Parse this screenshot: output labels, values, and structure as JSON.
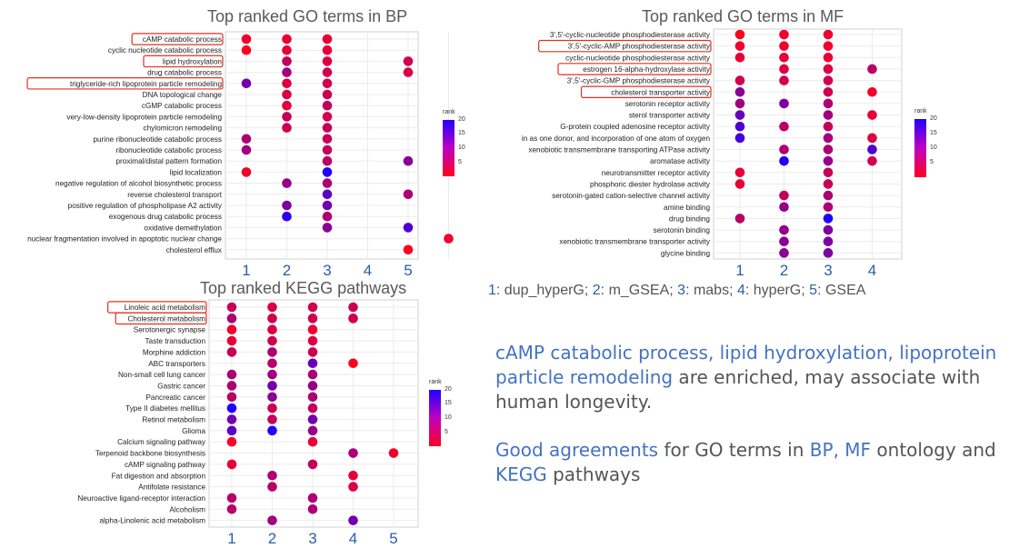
{
  "chart_data": [
    {
      "type": "scatter",
      "title": "Top ranked GO terms in BP",
      "x_ticks": [
        "1",
        "2",
        "3",
        "4",
        "5"
      ],
      "legend_title": "rank",
      "legend_ticks": [
        "20",
        "15",
        "10",
        "5"
      ],
      "categories": [
        "cAMP catabolic process",
        "cyclic nucleotide catabolic process",
        "lipid hydroxylation",
        "drug catabolic process",
        "triglyceride-rich lipoprotein particle remodeling",
        "DNA topological change",
        "cGMP catabolic process",
        "very-low-density lipoprotein particle remodeling",
        "chylomicron remodeling",
        "purine ribonucleotide catabolic process",
        "ribonucleotide catabolic process",
        "proximal/distal pattern formation",
        "lipid localization",
        "negative regulation of alcohol biosynthetic process",
        "reverse cholesterol transport",
        "positive regulation of phospholipase A2 activity",
        "exogenous drug catabolic process",
        "oxidative demethylation",
        "nuclear fragmentation involved in apoptotic nuclear change",
        "cholesterol efflux"
      ],
      "highlighted": [
        0,
        2,
        4
      ],
      "points": [
        [
          0,
          1,
          2
        ],
        [
          0,
          2,
          3
        ],
        [
          0,
          3,
          3
        ],
        [
          1,
          1,
          1
        ],
        [
          1,
          2,
          3
        ],
        [
          1,
          3,
          3
        ],
        [
          2,
          2,
          6
        ],
        [
          2,
          3,
          4
        ],
        [
          2,
          5,
          5
        ],
        [
          3,
          2,
          9
        ],
        [
          3,
          3,
          5
        ],
        [
          3,
          5,
          4
        ],
        [
          4,
          1,
          13
        ],
        [
          4,
          2,
          4
        ],
        [
          4,
          3,
          5
        ],
        [
          5,
          2,
          4
        ],
        [
          5,
          3,
          5
        ],
        [
          6,
          2,
          3
        ],
        [
          6,
          3,
          6
        ],
        [
          7,
          2,
          6
        ],
        [
          7,
          3,
          5
        ],
        [
          8,
          2,
          5
        ],
        [
          8,
          3,
          6
        ],
        [
          9,
          1,
          8
        ],
        [
          9,
          3,
          6
        ],
        [
          10,
          1,
          9
        ],
        [
          10,
          3,
          6
        ],
        [
          11,
          3,
          7
        ],
        [
          11,
          5,
          11
        ],
        [
          11,
          6,
          9
        ],
        [
          12,
          1,
          2
        ],
        [
          12,
          3,
          20
        ],
        [
          13,
          2,
          10
        ],
        [
          13,
          3,
          8
        ],
        [
          14,
          3,
          15
        ],
        [
          14,
          5,
          8
        ],
        [
          15,
          2,
          12
        ],
        [
          15,
          3,
          13
        ],
        [
          16,
          2,
          19
        ],
        [
          16,
          3,
          8
        ],
        [
          17,
          3,
          11
        ],
        [
          17,
          5,
          16
        ],
        [
          18,
          6,
          2
        ],
        [
          19,
          5,
          1
        ]
      ]
    },
    {
      "type": "scatter",
      "title": "Top ranked GO terms in MF",
      "x_ticks": [
        "1",
        "2",
        "3",
        "4"
      ],
      "legend_title": "rank",
      "legend_ticks": [
        "20",
        "15",
        "10",
        "5"
      ],
      "categories": [
        "3',5'-cyclic-nucleotide phosphodiesterase activity",
        "3',5'-cyclic-AMP phosphodiesterase activity",
        "cyclic-nucleotide phosphodiesterase activity",
        "estrogen 16-alpha-hydroxylase activity",
        "3',5'-cyclic-GMP phosphodiesterase activity",
        "cholesterol transporter activity",
        "serotonin receptor activity",
        "sterol transporter activity",
        "G-protein coupled adenosine receptor activity",
        "oxidoreductase activity, acting on paired donors, with incorporation or reduction of molecular oxygen, NAD(P)H as one donor, and incorporation of one atom of oxygen",
        "xenobiotic transmembrane transporting ATPase activity",
        "aromatase activity",
        "neurotransmitter receptor activity",
        "phosphoric diester hydrolase activity",
        "serotonin-gated cation-selective channel activity",
        "amine binding",
        "drug binding",
        "serotonin binding",
        "xenobiotic transmembrane transporter activity",
        "glycine binding"
      ],
      "label_visible_text_row9": "in as one donor, and incorporation of one atom of oxygen",
      "highlighted": [
        1,
        3,
        5
      ],
      "points": [
        [
          0,
          1,
          1
        ],
        [
          0,
          2,
          2
        ],
        [
          0,
          3,
          2
        ],
        [
          1,
          1,
          2
        ],
        [
          1,
          2,
          2
        ],
        [
          1,
          3,
          2
        ],
        [
          2,
          1,
          3
        ],
        [
          2,
          2,
          3
        ],
        [
          2,
          3,
          3
        ],
        [
          3,
          2,
          4
        ],
        [
          3,
          3,
          4
        ],
        [
          3,
          4,
          7
        ],
        [
          4,
          1,
          5
        ],
        [
          4,
          2,
          5
        ],
        [
          4,
          3,
          5
        ],
        [
          5,
          1,
          11
        ],
        [
          5,
          3,
          5
        ],
        [
          5,
          4,
          2
        ],
        [
          6,
          1,
          9
        ],
        [
          6,
          2,
          12
        ],
        [
          6,
          3,
          8
        ],
        [
          7,
          1,
          14
        ],
        [
          7,
          3,
          9
        ],
        [
          7,
          4,
          3
        ],
        [
          8,
          1,
          16
        ],
        [
          8,
          2,
          7
        ],
        [
          8,
          3,
          6
        ],
        [
          9,
          1,
          17
        ],
        [
          9,
          3,
          9
        ],
        [
          9,
          4,
          4
        ],
        [
          10,
          2,
          8
        ],
        [
          10,
          3,
          8
        ],
        [
          10,
          4,
          16
        ],
        [
          11,
          2,
          20
        ],
        [
          11,
          3,
          10
        ],
        [
          11,
          4,
          5
        ],
        [
          12,
          1,
          3
        ],
        [
          12,
          3,
          6
        ],
        [
          13,
          1,
          3
        ],
        [
          13,
          3,
          6
        ],
        [
          14,
          2,
          6
        ],
        [
          14,
          3,
          8
        ],
        [
          15,
          2,
          10
        ],
        [
          15,
          3,
          8
        ],
        [
          16,
          1,
          7
        ],
        [
          16,
          3,
          20
        ],
        [
          17,
          2,
          10
        ],
        [
          17,
          3,
          12
        ],
        [
          18,
          2,
          11
        ],
        [
          18,
          3,
          12
        ],
        [
          19,
          2,
          11
        ],
        [
          19,
          3,
          12
        ]
      ]
    },
    {
      "type": "scatter",
      "title": "Top ranked KEGG pathways",
      "x_ticks": [
        "1",
        "2",
        "3",
        "4",
        "5"
      ],
      "legend_title": "rank",
      "legend_ticks": [
        "20",
        "15",
        "10",
        "5"
      ],
      "categories": [
        "Linoleic acid metabolism",
        "Cholesterol metabolism",
        "Serotonergic synapse",
        "Taste transduction",
        "Morphine addiction",
        "ABC transporters",
        "Non-small cell lung cancer",
        "Gastric cancer",
        "Pancreatic cancer",
        "Type II diabetes mellitus",
        "Retinol metabolism",
        "Glioma",
        "Calcium signaling pathway",
        "Terpenoid backbone biosynthesis",
        "cAMP signaling pathway",
        "Fat digestion and absorption",
        "Antifolate resistance",
        "Neuroactive ligand-receptor interaction",
        "Alcoholism",
        "alpha-Linolenic acid metabolism"
      ],
      "highlighted": [
        0,
        1
      ],
      "points": [
        [
          0,
          1,
          6
        ],
        [
          0,
          2,
          4
        ],
        [
          0,
          3,
          5
        ],
        [
          0,
          4,
          5
        ],
        [
          1,
          1,
          8
        ],
        [
          1,
          2,
          5
        ],
        [
          1,
          3,
          5
        ],
        [
          1,
          4,
          5
        ],
        [
          2,
          1,
          2
        ],
        [
          2,
          2,
          4
        ],
        [
          2,
          3,
          2
        ],
        [
          3,
          1,
          3
        ],
        [
          3,
          2,
          5
        ],
        [
          3,
          3,
          4
        ],
        [
          4,
          1,
          6
        ],
        [
          4,
          2,
          8
        ],
        [
          4,
          3,
          5
        ],
        [
          5,
          2,
          7
        ],
        [
          5,
          3,
          14
        ],
        [
          5,
          4,
          1
        ],
        [
          6,
          1,
          8
        ],
        [
          6,
          2,
          9
        ],
        [
          6,
          3,
          8
        ],
        [
          7,
          1,
          8
        ],
        [
          7,
          2,
          13
        ],
        [
          7,
          3,
          10
        ],
        [
          8,
          1,
          7
        ],
        [
          8,
          2,
          11
        ],
        [
          8,
          3,
          8
        ],
        [
          9,
          1,
          20
        ],
        [
          9,
          2,
          5
        ],
        [
          9,
          3,
          6
        ],
        [
          10,
          1,
          13
        ],
        [
          10,
          2,
          6
        ],
        [
          10,
          3,
          13
        ],
        [
          11,
          1,
          15
        ],
        [
          11,
          2,
          20
        ],
        [
          11,
          3,
          10
        ],
        [
          12,
          1,
          2
        ],
        [
          12,
          3,
          3
        ],
        [
          13,
          4,
          8
        ],
        [
          13,
          5,
          2
        ],
        [
          14,
          1,
          3
        ],
        [
          14,
          3,
          6
        ],
        [
          15,
          2,
          8
        ],
        [
          15,
          4,
          3
        ],
        [
          16,
          2,
          7
        ],
        [
          16,
          4,
          4
        ],
        [
          17,
          1,
          7
        ],
        [
          17,
          3,
          8
        ],
        [
          18,
          1,
          7
        ],
        [
          18,
          3,
          8
        ],
        [
          19,
          2,
          9
        ],
        [
          19,
          4,
          13
        ]
      ]
    }
  ],
  "caption": {
    "items": [
      {
        "num": "1",
        "label": "dup_hyperG;"
      },
      {
        "num": "2",
        "label": "m_GSEA;"
      },
      {
        "num": "3",
        "label": "mabs;"
      },
      {
        "num": "4",
        "label": "hyperG;"
      },
      {
        "num": "5",
        "label": "GSEA"
      }
    ]
  },
  "note1": {
    "hl": "cAMP catabolic process, lipid hydroxylation, lipoprotein particle remodeling",
    "rest": " are enriched, may associate with human longevity."
  },
  "note2": {
    "hl1": "Good agreements",
    "t1": " for GO terms in ",
    "hl2": "BP, MF",
    "t2": " ontology and ",
    "hl3": "KEGG",
    "t3": " pathways"
  },
  "colors": {
    "accent": "#4472c4",
    "highlight_box": "#e03020",
    "low_rank": "#ff0020",
    "high_rank": "#2000ff"
  }
}
